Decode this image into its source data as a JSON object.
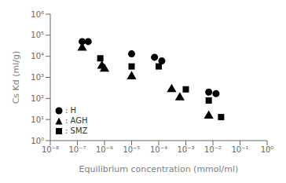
{
  "chart_data": {
    "type": "scatter",
    "xlabel": "Equilibrium concentration (mmol/ml)",
    "ylabel": "Cs Kd (ml/g)",
    "log": true,
    "grid": false,
    "legend": "lower left",
    "xlim": [
      1e-08,
      1
    ],
    "ylim": [
      1,
      1000000.0
    ],
    "xticks": [
      {
        "value": 1e-08,
        "label": "10⁻⁸"
      },
      {
        "value": 1e-07,
        "label": "10⁻⁷"
      },
      {
        "value": 1e-06,
        "label": "10⁻⁶"
      },
      {
        "value": 1e-05,
        "label": "10⁻⁵"
      },
      {
        "value": 0.0001,
        "label": "10⁻⁴"
      },
      {
        "value": 0.001,
        "label": "10⁻³"
      },
      {
        "value": 0.01,
        "label": "10⁻²"
      },
      {
        "value": 0.1,
        "label": "10⁻¹"
      },
      {
        "value": 1,
        "label": "10⁰"
      }
    ],
    "yticks": [
      {
        "value": 1,
        "label": "10⁰"
      },
      {
        "value": 10,
        "label": "10¹"
      },
      {
        "value": 100,
        "label": "10²"
      },
      {
        "value": 1000,
        "label": "10³"
      },
      {
        "value": 10000,
        "label": "10⁴"
      },
      {
        "value": 100000,
        "label": "10⁵"
      },
      {
        "value": 1000000,
        "label": "10⁶"
      }
    ],
    "series": [
      {
        "name": ": H",
        "color": "black",
        "marker": "circle",
        "x": [
          1.5e-07,
          2.5e-07,
          1e-05,
          7e-05,
          0.00013,
          0.007,
          0.013
        ],
        "values": [
          50000.0,
          50000.0,
          13000.0,
          9000.0,
          6000.0,
          200,
          170
        ]
      },
      {
        "name": ": AGH",
        "color": "black",
        "marker": "triangle",
        "x": [
          1.5e-07,
          8e-07,
          1e-06,
          1e-05,
          0.0003,
          0.0006,
          0.007
        ],
        "values": [
          25000.0,
          3500.0,
          2500.0,
          1100.0,
          270,
          110,
          15
        ]
      },
      {
        "name": ": SMZ",
        "color": "black",
        "marker": "square",
        "x": [
          7e-07,
          1e-05,
          0.0001,
          0.001,
          0.007,
          0.02
        ],
        "values": [
          8000.0,
          3300.0,
          3300.0,
          270,
          80,
          13
        ]
      }
    ]
  }
}
